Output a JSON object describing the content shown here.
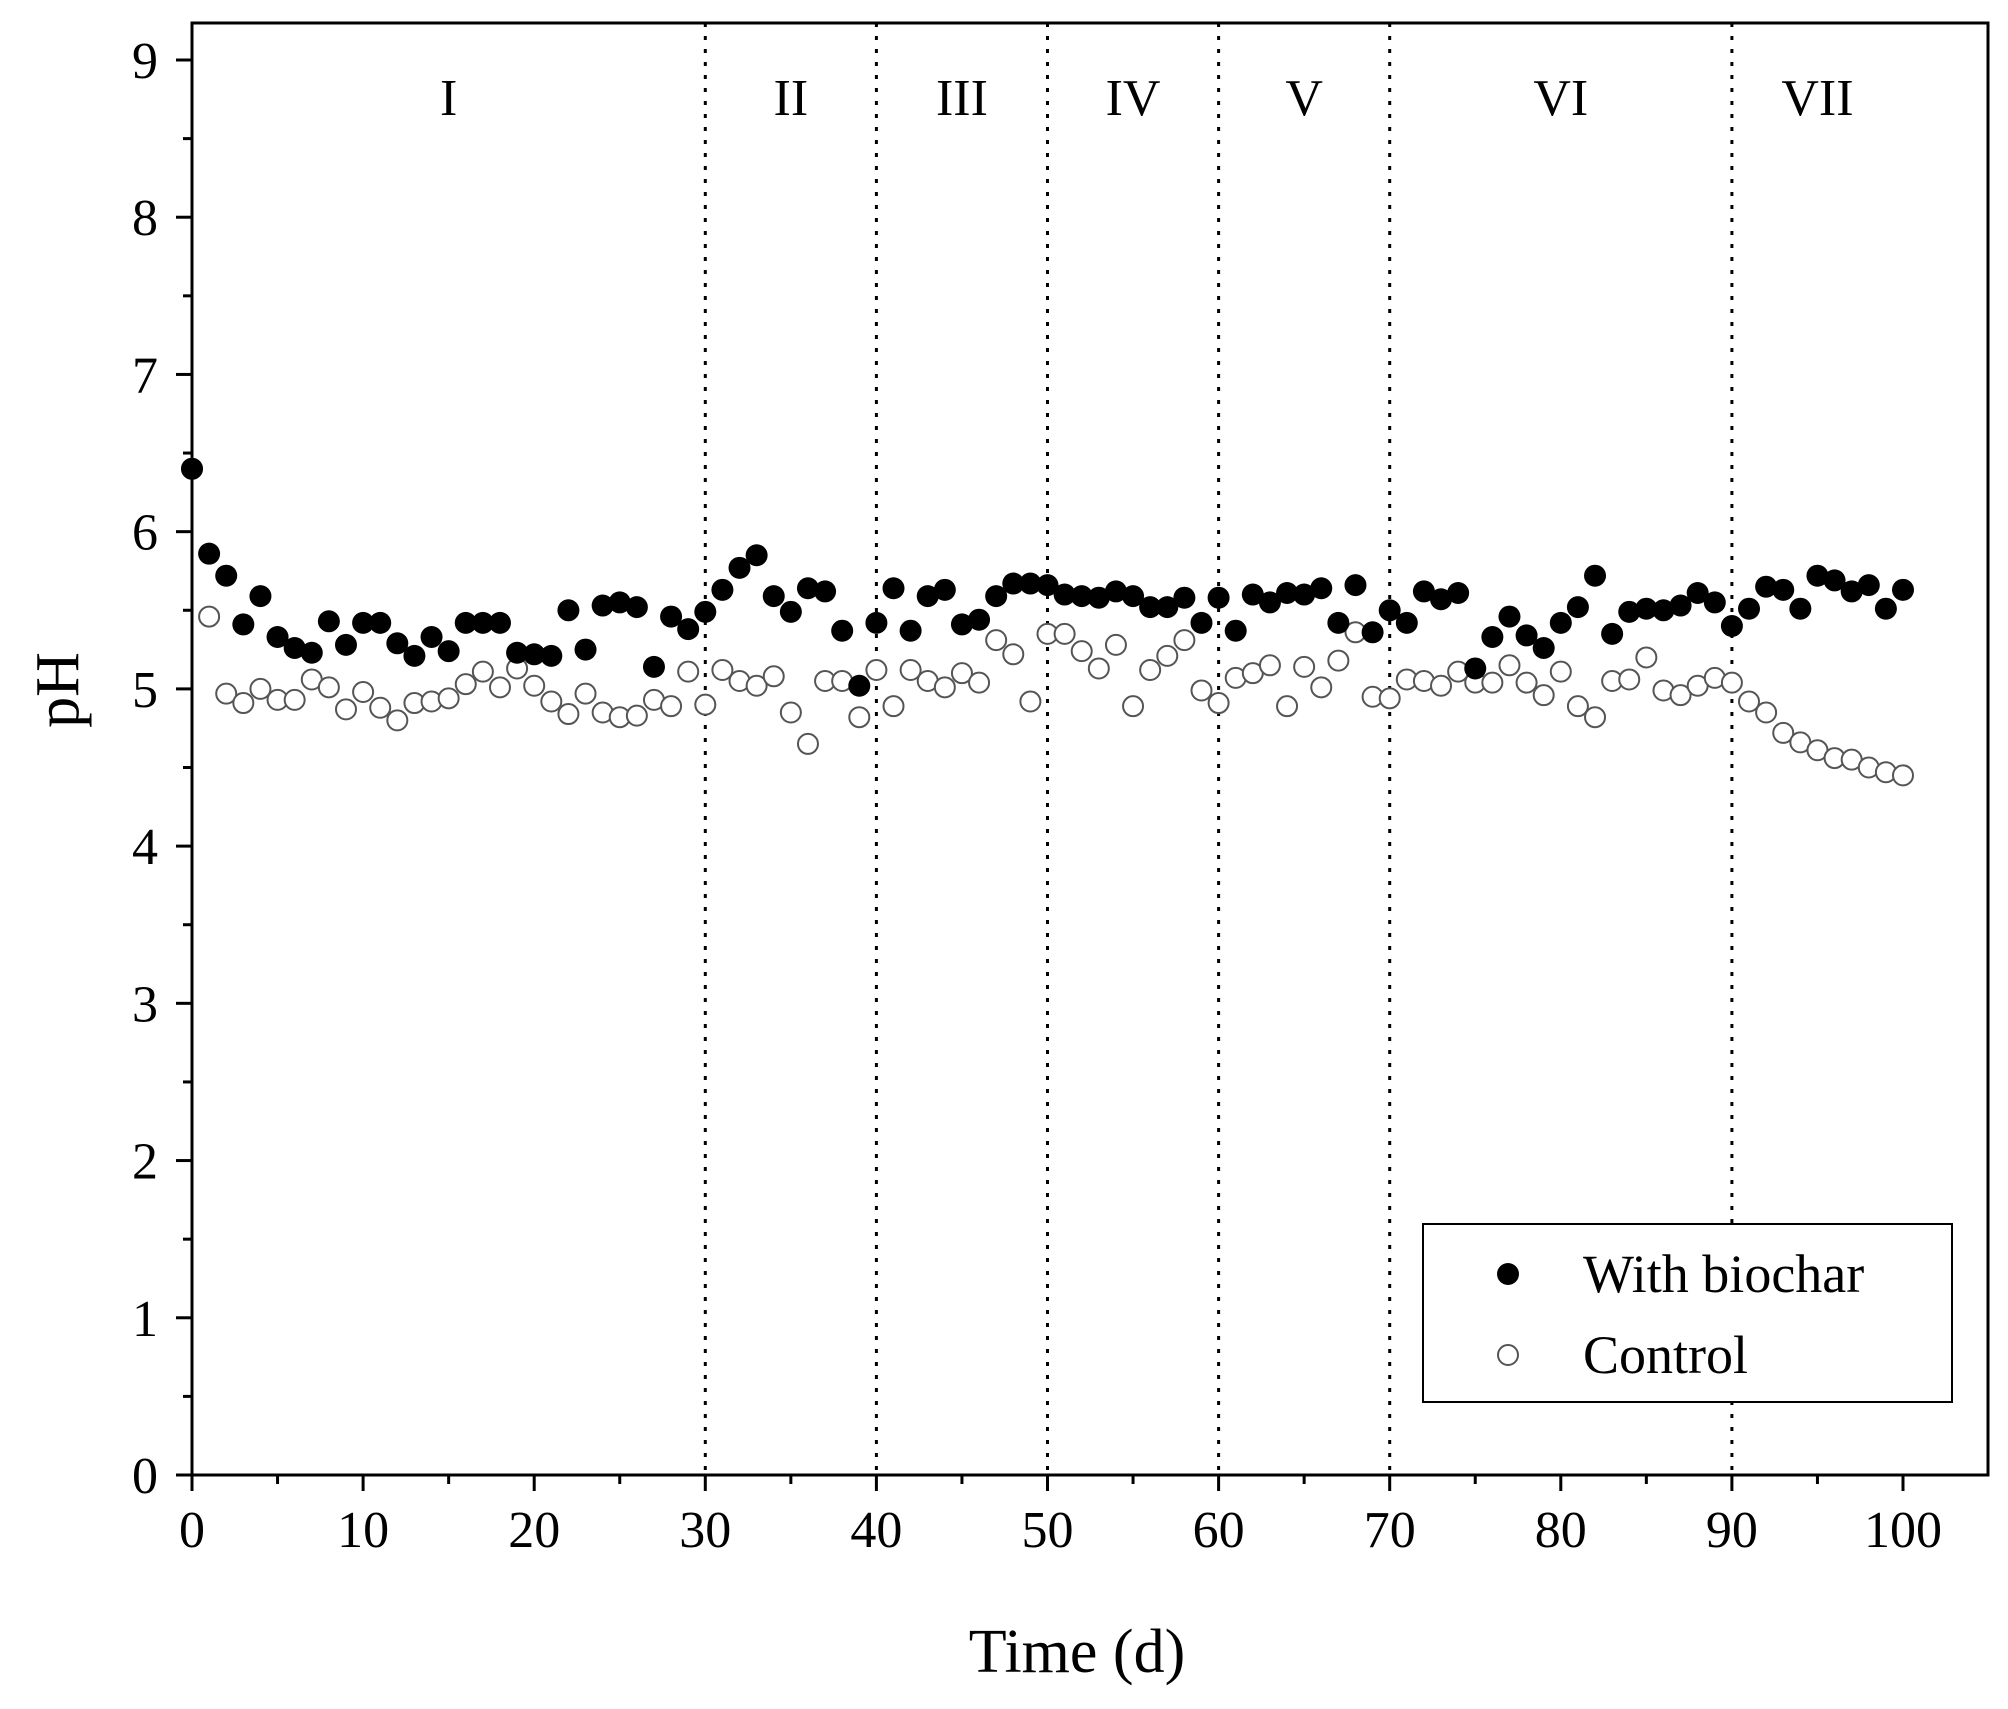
{
  "chart_data": {
    "type": "scatter",
    "title": "",
    "xlabel": "Time (d)",
    "ylabel": "pH",
    "xlim": [
      0,
      100
    ],
    "ylim": [
      0,
      9
    ],
    "xticks": [
      0,
      10,
      20,
      30,
      40,
      50,
      60,
      70,
      80,
      90,
      100
    ],
    "yticks": [
      0,
      1,
      2,
      3,
      4,
      5,
      6,
      7,
      8,
      9
    ],
    "grid": false,
    "legend_position": "bottom-right",
    "phase_boundaries": [
      30,
      40,
      50,
      60,
      70,
      90
    ],
    "phases": [
      {
        "label": "I",
        "center": 15
      },
      {
        "label": "II",
        "center": 35
      },
      {
        "label": "III",
        "center": 45
      },
      {
        "label": "IV",
        "center": 55
      },
      {
        "label": "V",
        "center": 65
      },
      {
        "label": "VI",
        "center": 80
      },
      {
        "label": "VII",
        "center": 95
      }
    ],
    "series": [
      {
        "name": "With biochar",
        "marker": "filled-circle",
        "color": "#000000",
        "x_start": 0,
        "values": [
          6.4,
          5.86,
          5.72,
          5.41,
          5.59,
          5.33,
          5.26,
          5.23,
          5.43,
          5.28,
          5.42,
          5.42,
          5.29,
          5.21,
          5.33,
          5.24,
          5.42,
          5.42,
          5.42,
          5.23,
          5.22,
          5.21,
          5.5,
          5.25,
          5.53,
          5.55,
          5.52,
          5.14,
          5.46,
          5.38,
          5.49,
          5.63,
          5.77,
          5.85,
          5.59,
          5.49,
          5.64,
          5.62,
          5.37,
          5.02,
          5.42,
          5.64,
          5.37,
          5.59,
          5.63,
          5.41,
          5.44,
          5.59,
          5.67,
          5.67,
          5.66,
          5.6,
          5.59,
          5.58,
          5.62,
          5.59,
          5.52,
          5.52,
          5.58,
          5.42,
          5.58,
          5.37,
          5.6,
          5.55,
          5.61,
          5.6,
          5.64,
          5.42,
          5.66,
          5.36,
          5.5,
          5.42,
          5.62,
          5.57,
          5.61,
          5.13,
          5.33,
          5.46,
          5.34,
          5.26,
          5.42,
          5.52,
          5.72,
          5.35,
          5.49,
          5.51,
          5.5,
          5.53,
          5.61,
          5.55,
          5.4,
          5.51,
          5.65,
          5.63,
          5.51,
          5.72,
          5.69,
          5.62,
          5.66,
          5.51,
          5.63
        ]
      },
      {
        "name": "Control",
        "marker": "open-circle",
        "color": "#555555",
        "x_start": 0,
        "values": [
          6.4,
          5.46,
          4.97,
          4.91,
          5.0,
          4.93,
          4.93,
          5.06,
          5.01,
          4.87,
          4.98,
          4.88,
          4.8,
          4.91,
          4.92,
          4.94,
          5.03,
          5.11,
          5.01,
          5.13,
          5.02,
          4.92,
          4.84,
          4.97,
          4.85,
          4.82,
          4.83,
          4.93,
          4.89,
          5.11,
          4.9,
          5.12,
          5.05,
          5.02,
          5.08,
          4.85,
          4.65,
          5.05,
          5.05,
          4.82,
          5.12,
          4.89,
          5.12,
          5.05,
          5.01,
          5.1,
          5.04,
          5.31,
          5.22,
          4.92,
          5.35,
          5.35,
          5.24,
          5.13,
          5.28,
          4.89,
          5.12,
          5.21,
          5.31,
          4.99,
          4.91,
          5.07,
          5.1,
          5.15,
          4.89,
          5.14,
          5.01,
          5.18,
          5.36,
          4.95,
          4.94,
          5.06,
          5.05,
          5.02,
          5.11,
          5.04,
          5.04,
          5.15,
          5.04,
          4.96,
          5.11,
          4.89,
          4.82,
          5.05,
          5.06,
          5.2,
          4.99,
          4.96,
          5.02,
          5.07,
          5.04,
          4.92,
          4.85,
          4.72,
          4.66,
          4.61,
          4.56,
          4.55,
          4.5,
          4.47,
          4.45
        ]
      }
    ]
  }
}
